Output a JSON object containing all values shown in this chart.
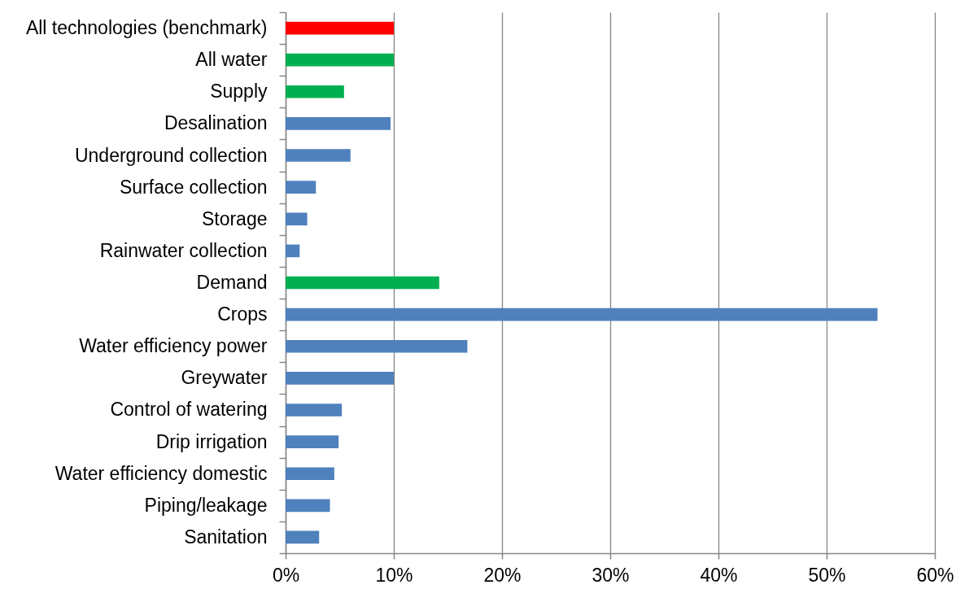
{
  "chart_data": {
    "type": "bar",
    "orientation": "horizontal",
    "categories": [
      "All technologies (benchmark)",
      "All water",
      "Supply",
      "Desalination",
      "Underground collection",
      "Surface collection",
      "Storage",
      "Rainwater collection",
      "Demand",
      "Crops",
      "Water efficiency power",
      "Greywater",
      "Control of watering",
      "Drip irrigation",
      "Water efficiency domestic",
      "Piping/leakage",
      "Sanitation"
    ],
    "values": [
      10.0,
      10.0,
      5.4,
      9.7,
      6.0,
      2.8,
      2.0,
      1.3,
      14.2,
      54.7,
      16.8,
      10.0,
      5.2,
      4.9,
      4.5,
      4.1,
      3.1
    ],
    "colors": [
      "#ff0000",
      "#00b050",
      "#00b050",
      "#4f81bd",
      "#4f81bd",
      "#4f81bd",
      "#4f81bd",
      "#4f81bd",
      "#00b050",
      "#4f81bd",
      "#4f81bd",
      "#4f81bd",
      "#4f81bd",
      "#4f81bd",
      "#4f81bd",
      "#4f81bd",
      "#4f81bd"
    ],
    "xlim": [
      0,
      60
    ],
    "xticks": [
      {
        "value": 0,
        "label": "0%"
      },
      {
        "value": 10,
        "label": "10%"
      },
      {
        "value": 20,
        "label": "20%"
      },
      {
        "value": 30,
        "label": "30%"
      },
      {
        "value": 40,
        "label": "40%"
      },
      {
        "value": 50,
        "label": "50%"
      },
      {
        "value": 60,
        "label": "60%"
      }
    ],
    "grid": "x"
  }
}
